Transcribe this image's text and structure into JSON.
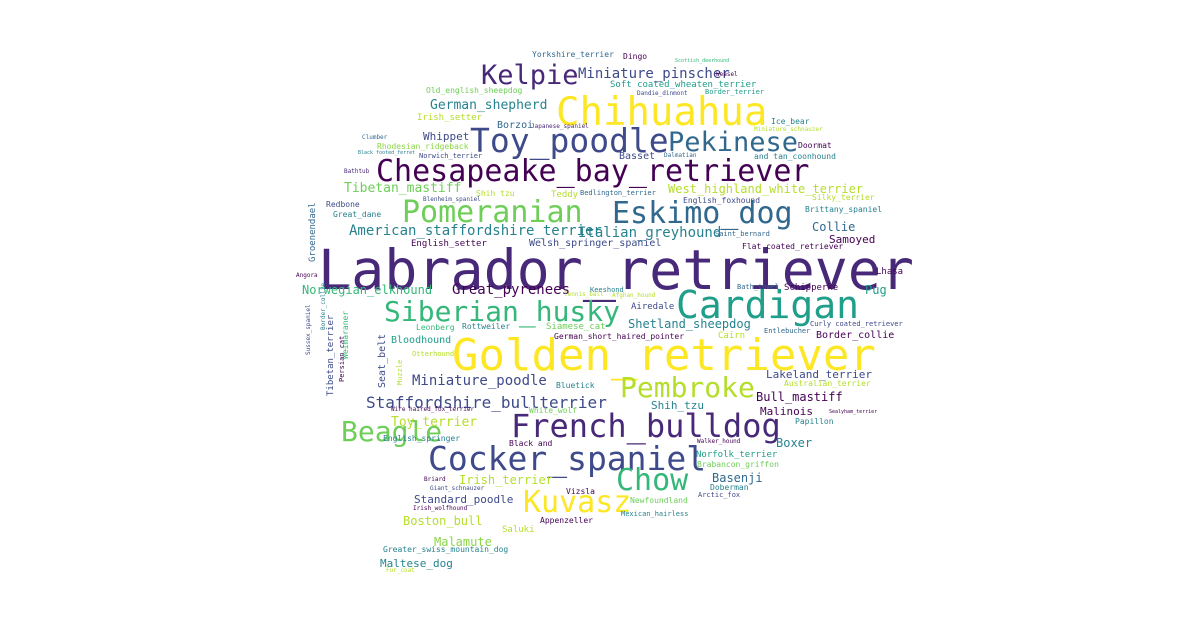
{
  "cloud": {
    "labrador_retriever": "Labrador_retriever",
    "golden_retriever": "Golden_retriever",
    "chesapeake_bay_retriever": "Chesapeake_bay_retriever",
    "chihuahua": "Chihuahua",
    "toy_poodle": "Toy_poodle",
    "cardigan": "Cardigan",
    "french_bulldog": "French_bulldog",
    "cocker_spaniel": "Cocker_spaniel",
    "pomeranian": "Pomeranian",
    "eskimo_dog": "Eskimo_dog",
    "siberian_husky": "Siberian_husky",
    "kelpie": "Kelpie",
    "pekinese": "Pekinese",
    "beagle": "Beagle",
    "pembroke": "Pembroke",
    "kuvasz": "Kuvasz",
    "chow": "Chow",
    "staffordshire_bullterrier": "Staffordshire_bullterrier",
    "american_staffordshire_terrier": "American_staffordshire_terrier",
    "italian_greyhound": "Italian_greyhound",
    "great_pyrenees": "Great_pyrenees",
    "miniature_poodle": "Miniature_poodle",
    "miniature_pinscher": "Miniature_pinscher",
    "german_shepherd": "German_shepherd",
    "tibetan_mastiff": "Tibetan_mastiff",
    "west_highland_white_terrier": "West_highland_white_terrier",
    "norwegian_elkhound": "Norwegian_elkhound",
    "shetland_sheepdog": "Shetland_sheepdog",
    "bull_mastiff": "Bull_mastiff",
    "lakeland_terrier": "Lakeland_terrier",
    "toy_terrier": "Toy_terrier",
    "irish_terrier": "Irish_terrier",
    "standard_poodle": "Standard_poodle",
    "boston_bull": "Boston_bull",
    "malamute": "Malamute",
    "maltese_dog": "Maltese_dog",
    "basenji": "Basenji",
    "collie": "Collie",
    "samoyed": "Samoyed",
    "pug": "Pug",
    "boxer": "Boxer",
    "malinois": "Malinois",
    "shih_tzu": "Shih_tzu",
    "whippet": "Whippet",
    "borzoi": "Borzoi",
    "basset": "Basset",
    "welsh_springer_spaniel": "Welsh_springer_spaniel",
    "english_setter": "English_setter",
    "bloodhound": "Bloodhound",
    "airedale": "Airedale",
    "rottweiler": "Rottweiler",
    "leonberg": "Leonberg",
    "siamese_cat": "Siamese_cat",
    "german_short_haired_pointer": "German_short_haired_pointer",
    "cairn": "Cairn",
    "border_collie": "Border_collie",
    "curly_coated_retriever": "Curly coated_retriever",
    "entlebucher": "Entlebucher",
    "schipperke": "Schipperke",
    "lhasa": "Lhasa",
    "bath_towel": "Bath_towel",
    "flat_coated_retriever": "Flat coated_retriever",
    "saint_bernard": "Saint_bernard",
    "keeshond": "Keeshond",
    "english_foxhound": "English_foxhound",
    "bedlington_terrier": "Bedlington_terrier",
    "teddy": "Teddy",
    "blenheim_spaniel": "Blenheim_spaniel",
    "brittany_spaniel": "Brittany_spaniel",
    "silky_terrier": "Silky_terrier",
    "redbone": "Redbone",
    "great_dane": "Great_dane",
    "groenendael": "Groenendael",
    "angora": "Angora",
    "shih_tzu_2": "Shih tzu",
    "yorkshire_terrier": "Yorkshire_terrier",
    "dingo": "Dingo",
    "old_english_sheepdog": "Old_english_sheepdog",
    "soft_coated_wheaten_terrier": "Soft coated_wheaten_terrier",
    "dandie_dinmont": "Dandie_dinmont",
    "border_terrier": "Border_terrier",
    "irish_setter": "Irish_setter",
    "ice_bear": "Ice_bear",
    "japanese_spaniel": "Japanese_spaniel",
    "miniature_schnauzer": "Miniature_schnauzer",
    "doormat": "Doormat",
    "black_and_tan_coonhound": "and tan_coonhound",
    "dalmatian": "Dalmatian",
    "norwich_terrier": "Norwich_terrier",
    "rhodesian_ridgeback": "Rhodesian_ridgeback",
    "black_footed_ferret": "Black footed_ferret",
    "clumber": "Clumber",
    "bathtub": "Bathtub",
    "tibetan_terrier": "Tibetan_terrier",
    "persian_cat": "Persian_cat",
    "seat_belt": "Seat_belt",
    "weimaraner": "Weimaraner",
    "muzzle": "Muzzle",
    "otterhound": "Otterhound",
    "bluetick": "Bluetick",
    "australian_terrier": "Australian_terrier",
    "wire_haired_fox_terrier": "Wire haired_fox_terrier",
    "white_wolf": "White_wolf",
    "english_springer": "English_springer",
    "black_and": "Black and",
    "walker_hound": "Walker_hound",
    "papillon": "Papillon",
    "norfolk_terrier": "Norfolk_terrier",
    "brabancon_griffon": "Brabancon_griffon",
    "briard": "Briard",
    "giant_schnauzer": "Giant_schnauzer",
    "irish_wolfhound": "Irish_wolfhound",
    "vizsla": "Vizsla",
    "doberman": "Doberman",
    "arctic_fox": "Arctic_fox",
    "newfoundland": "Newfoundland",
    "mexican_hairless": "Mexican_hairless",
    "appenzeller": "Appenzeller",
    "saluki": "Saluki",
    "greater_swiss_mountain_dog": "Greater_swiss_mountain_dog",
    "fur_coat": "Fur_coat",
    "sussex_spaniel": "Sussex_spaniel",
    "afghan_hound": "Afghan_hound",
    "tennis_ball": "Tennis_ball",
    "weasel": "Weasel",
    "scottish_deerhound": "Scottish_deerhound",
    "sealyham_terrier": "Sealyham_terrier",
    "border_collie_2": "Border_collie"
  },
  "colors": {
    "c1": "#440154",
    "c2": "#482878",
    "c3": "#3e4a89",
    "c4": "#31688e",
    "c5": "#26828e",
    "c6": "#1f9e89",
    "c7": "#35b779",
    "c8": "#6ece58",
    "c9": "#b5de2b",
    "c10": "#fde725"
  }
}
